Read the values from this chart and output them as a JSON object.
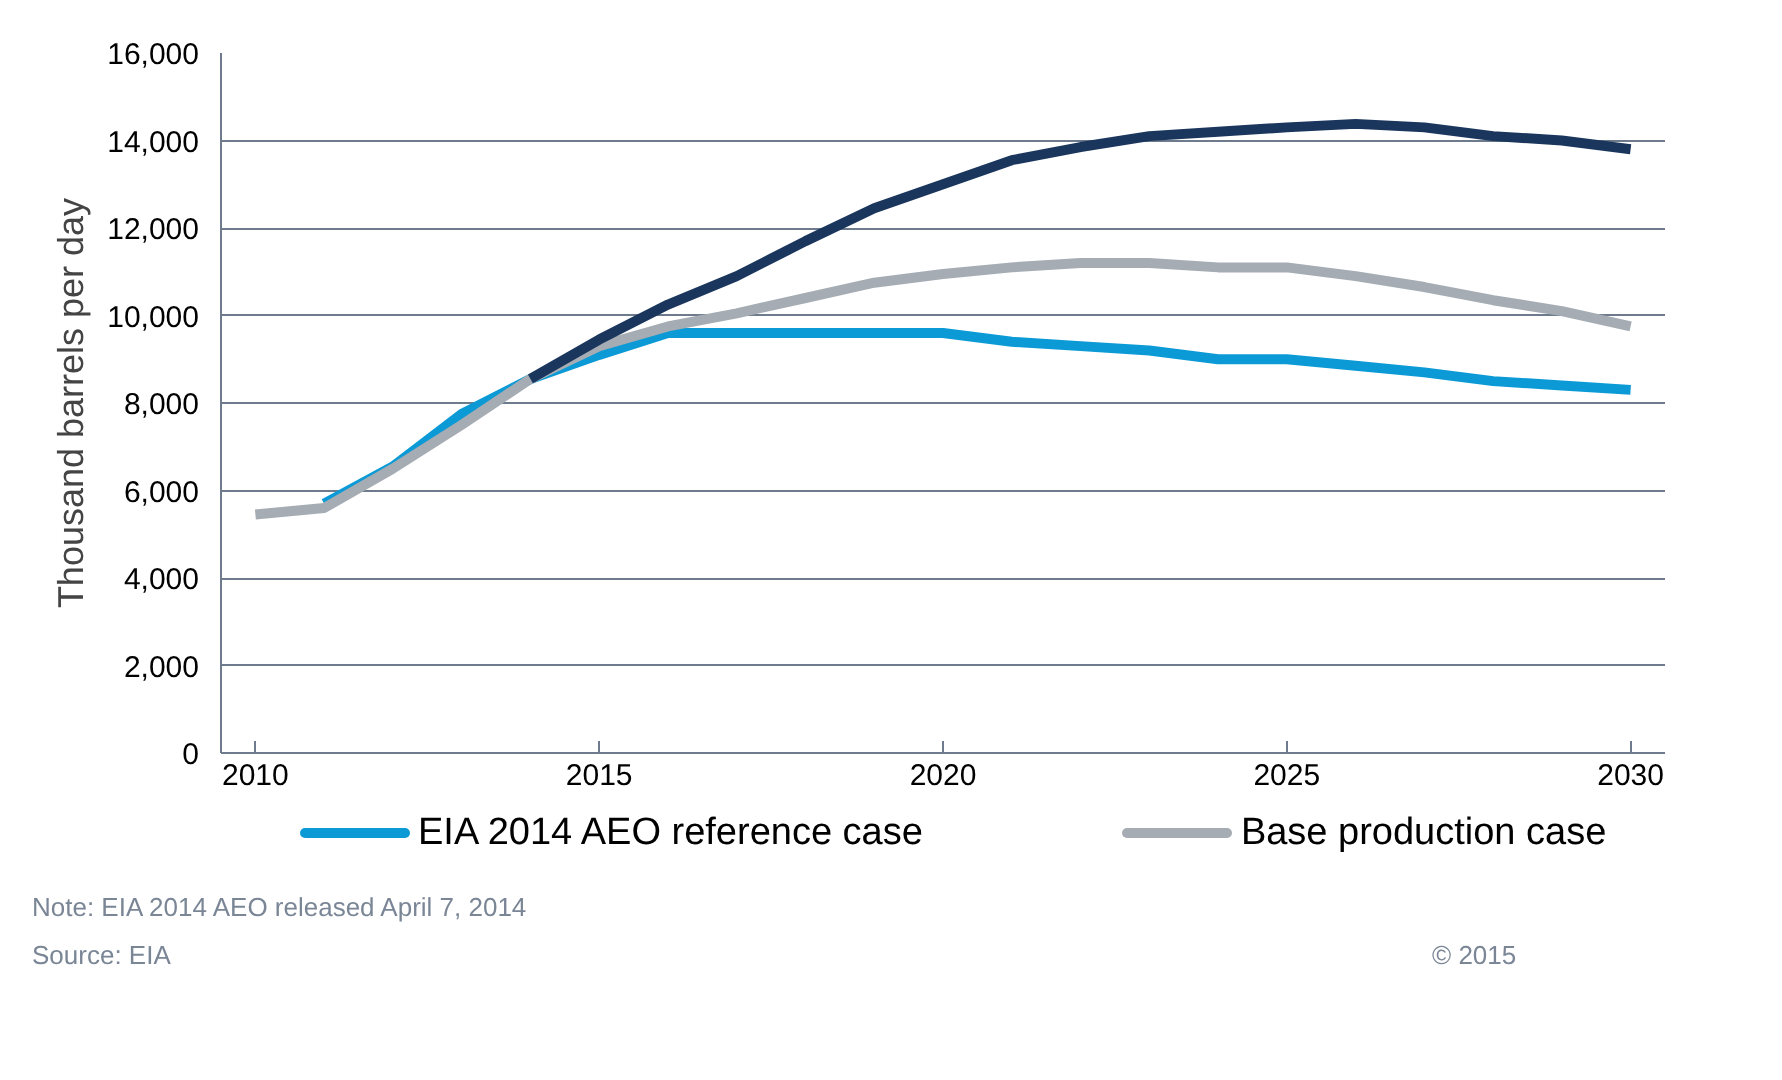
{
  "chart_data": {
    "type": "line",
    "ylabel": "Thousand barrels per day",
    "x": [
      2010,
      2011,
      2012,
      2013,
      2014,
      2015,
      2016,
      2017,
      2018,
      2019,
      2020,
      2021,
      2022,
      2023,
      2024,
      2025,
      2026,
      2027,
      2028,
      2029,
      2030
    ],
    "xlim": [
      2009.5,
      2030.5
    ],
    "xticks": [
      2010,
      2015,
      2020,
      2025,
      2030
    ],
    "ylim": [
      0,
      16000
    ],
    "yticks": [
      {
        "value": 0,
        "label": "0"
      },
      {
        "value": 2000,
        "label": "2,000"
      },
      {
        "value": 4000,
        "label": "4,000"
      },
      {
        "value": 6000,
        "label": "6,000"
      },
      {
        "value": 8000,
        "label": "8,000"
      },
      {
        "value": 10000,
        "label": "10,000"
      },
      {
        "value": 12000,
        "label": "12,000"
      },
      {
        "value": 14000,
        "label": "14,000"
      },
      {
        "value": 16000,
        "label": "16,000"
      }
    ],
    "grid": "y",
    "legend": "bottom",
    "marker": "none",
    "line_style": "solid",
    "series": [
      {
        "name": "EIA 2014 AEO reference case",
        "color": "#0b9ad6",
        "values": [
          null,
          5700,
          6550,
          7750,
          8550,
          9100,
          9600,
          9600,
          9600,
          9600,
          9600,
          9400,
          9300,
          9200,
          9000,
          9000,
          8850,
          8700,
          8500,
          8400,
          8300
        ]
      },
      {
        "name": "Base production case",
        "color": "#a5acb3",
        "values": [
          5450,
          5600,
          6500,
          7500,
          8550,
          9300,
          9750,
          10050,
          10400,
          10750,
          10950,
          11100,
          11200,
          11200,
          11100,
          11100,
          10900,
          10650,
          10350,
          10100,
          9750
        ]
      },
      {
        "color": "#1b365d",
        "values": [
          null,
          null,
          null,
          null,
          8550,
          9450,
          10250,
          10900,
          11700,
          12450,
          13000,
          13550,
          13850,
          14100,
          14200,
          14300,
          14380,
          14300,
          14100,
          14000,
          13800
        ]
      }
    ],
    "annotations": [
      "Note: EIA 2014 AEO released April 7, 2014",
      "Source: EIA",
      "© 2015"
    ]
  }
}
